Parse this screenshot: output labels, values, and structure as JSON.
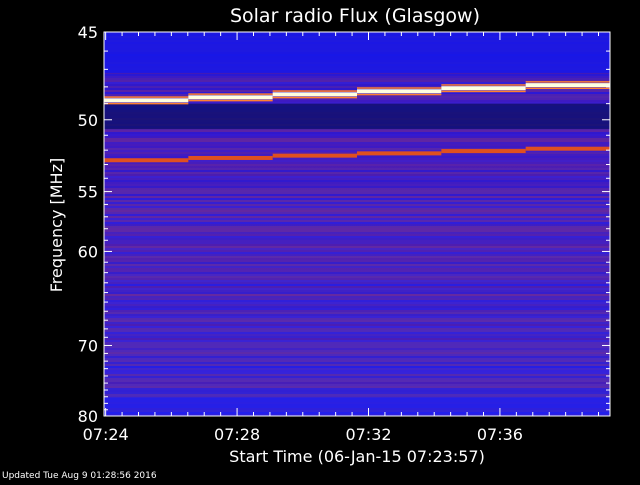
{
  "chart_data": {
    "type": "heatmap",
    "title": "Solar radio Flux (Glasgow)",
    "xlabel": "Start Time (06-Jan-15 07:23:57)",
    "ylabel": "Frequency [MHz]",
    "x_tick_labels": [
      "07:24",
      "07:28",
      "07:32",
      "07:36"
    ],
    "x_tick_minutes": [
      24,
      28,
      32,
      36
    ],
    "x_range_minutes": [
      23.95,
      39.35
    ],
    "y_tick_labels": [
      "45",
      "50",
      "55",
      "60",
      "70",
      "80"
    ],
    "y_tick_values": [
      45,
      50,
      55,
      60,
      70,
      80
    ],
    "y_range": [
      45,
      80
    ],
    "y_scale": "reciprocal",
    "grid": false,
    "colors": {
      "background": "#1a1ae0",
      "low": "#3a1ad0",
      "mid": "#6a2aa0",
      "high": "#e05020",
      "peak": "#ffffe0"
    },
    "bright_lines": [
      {
        "freq_start": 48.8,
        "freq_end": 47.9,
        "level": "peak"
      },
      {
        "freq_start": 52.7,
        "freq_end": 51.9,
        "level": "high"
      }
    ]
  },
  "footer": {
    "updated": "Updated Tue Aug  9 01:28:56 2016"
  }
}
